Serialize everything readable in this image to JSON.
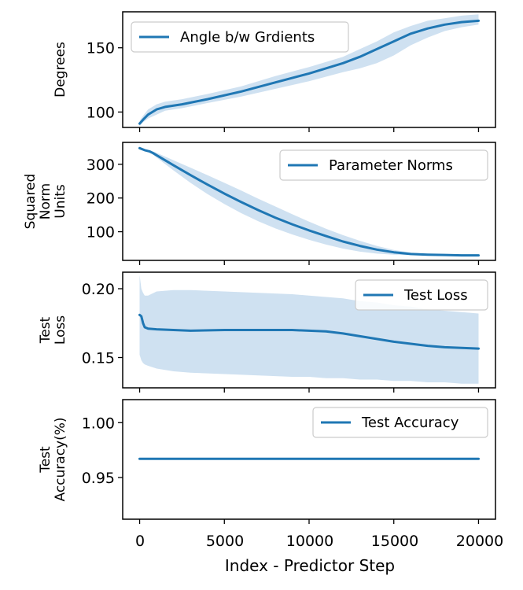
{
  "chart_data": [
    {
      "type": "line",
      "ylabel_lines": [
        "Degrees"
      ],
      "ylim": [
        88,
        178
      ],
      "yticks": [
        100,
        150
      ],
      "ytick_labels": [
        "100",
        "150"
      ],
      "series": [
        {
          "name": "Angle b/w Grdients",
          "x": [
            0,
            200,
            500,
            1000,
            1500,
            2500,
            4000,
            6000,
            8000,
            10000,
            12000,
            13000,
            14000,
            15000,
            16000,
            17000,
            18000,
            19000,
            20000
          ],
          "y": [
            91,
            94,
            98,
            102,
            104,
            106,
            110,
            116,
            123,
            130,
            138,
            143,
            149,
            155,
            161,
            165,
            168,
            170,
            171
          ],
          "lower": [
            89,
            92,
            95,
            98,
            101,
            103,
            107,
            112,
            118,
            124,
            131,
            134,
            138,
            144,
            152,
            158,
            163,
            166,
            168
          ],
          "upper": [
            93,
            97,
            102,
            106,
            108,
            110,
            114,
            120,
            128,
            135,
            143,
            149,
            155,
            162,
            167,
            171,
            173,
            175,
            176
          ]
        }
      ],
      "legend_loc": "upper left"
    },
    {
      "type": "line",
      "ylabel_lines": [
        "Squared",
        "Norm",
        "Units"
      ],
      "ylim": [
        15,
        365
      ],
      "yticks": [
        100,
        200,
        300
      ],
      "ytick_labels": [
        "100",
        "200",
        "300"
      ],
      "series": [
        {
          "name": "Parameter Norms",
          "x": [
            0,
            300,
            600,
            800,
            1000,
            2000,
            3000,
            4000,
            5000,
            6000,
            7000,
            8000,
            9000,
            10000,
            11000,
            12000,
            13000,
            14000,
            15000,
            16000,
            17000,
            18000,
            19000,
            20000
          ],
          "y": [
            348,
            342,
            338,
            333,
            327,
            297,
            268,
            240,
            213,
            188,
            164,
            142,
            122,
            104,
            87,
            71,
            58,
            47,
            39,
            34,
            32,
            31,
            30,
            30
          ],
          "lower": [
            346,
            339,
            334,
            328,
            320,
            282,
            245,
            212,
            182,
            155,
            131,
            110,
            92,
            76,
            62,
            50,
            41,
            35,
            32,
            31,
            30,
            30,
            29,
            29
          ],
          "upper": [
            350,
            345,
            342,
            338,
            334,
            312,
            290,
            268,
            245,
            222,
            198,
            175,
            152,
            130,
            109,
            90,
            73,
            58,
            46,
            38,
            34,
            33,
            32,
            31
          ]
        }
      ],
      "legend_loc": "upper right"
    },
    {
      "type": "line",
      "ylabel_lines": [
        "Test",
        "Loss"
      ],
      "ylim": [
        0.128,
        0.212
      ],
      "yticks": [
        0.15,
        0.2
      ],
      "ytick_labels": [
        "0.15",
        "0.20"
      ],
      "series": [
        {
          "name": "Test Loss",
          "x": [
            0,
            100,
            200,
            300,
            500,
            1000,
            2000,
            3000,
            5000,
            7000,
            9000,
            10000,
            11000,
            12000,
            13000,
            14000,
            15000,
            16000,
            17000,
            18000,
            19000,
            20000
          ],
          "y": [
            0.181,
            0.18,
            0.175,
            0.172,
            0.171,
            0.1705,
            0.17,
            0.1695,
            0.17,
            0.17,
            0.17,
            0.1695,
            0.169,
            0.1675,
            0.1655,
            0.1635,
            0.1615,
            0.16,
            0.1585,
            0.1575,
            0.157,
            0.1565
          ],
          "lower": [
            0.152,
            0.148,
            0.146,
            0.145,
            0.144,
            0.142,
            0.14,
            0.139,
            0.138,
            0.137,
            0.136,
            0.136,
            0.135,
            0.135,
            0.134,
            0.134,
            0.133,
            0.133,
            0.132,
            0.132,
            0.131,
            0.131
          ],
          "upper": [
            0.21,
            0.2,
            0.197,
            0.195,
            0.195,
            0.198,
            0.199,
            0.199,
            0.198,
            0.197,
            0.196,
            0.195,
            0.194,
            0.193,
            0.191,
            0.19,
            0.188,
            0.187,
            0.185,
            0.184,
            0.183,
            0.182
          ]
        }
      ],
      "legend_loc": "upper right"
    },
    {
      "type": "line",
      "ylabel_lines": [
        "Test",
        "Accuracy(%)"
      ],
      "ylim": [
        0.912,
        1.021
      ],
      "yticks": [
        0.95,
        1.0
      ],
      "ytick_labels": [
        "0.95",
        "1.00"
      ],
      "series": [
        {
          "name": "Test Accuracy",
          "x": [
            0,
            20000
          ],
          "y": [
            0.967,
            0.967
          ]
        }
      ],
      "legend_loc": "upper right"
    }
  ],
  "x_axis": {
    "label": "Index - Predictor Step",
    "xlim": [
      -1000,
      21000
    ],
    "ticks": [
      0,
      5000,
      10000,
      15000,
      20000
    ],
    "tick_labels": [
      "0",
      "5000",
      "10000",
      "15000",
      "20000"
    ]
  },
  "colors": {
    "line": "#1f77b4",
    "band": "#cfe1f1"
  }
}
